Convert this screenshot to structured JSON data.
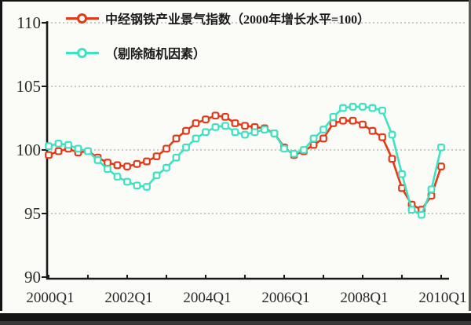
{
  "colors": {
    "series_index": "#e23a18",
    "series_smoothed": "#3fe2c0",
    "axis": "#1a1a1a",
    "gridline": "#ababab",
    "text": "#2a2a2a",
    "background": "#fbfbf8",
    "frame": "#141414"
  },
  "chart_data": {
    "type": "line",
    "title": "",
    "xlabel": "",
    "ylabel": "",
    "ylim": [
      90,
      110
    ],
    "yticks": [
      90,
      95,
      100,
      105,
      110
    ],
    "grid": "dotted-horizontal at 95/100/105/110",
    "legend_position": "top-left inside plot",
    "x_tick_labels": [
      "2000Q1",
      "2002Q1",
      "2004Q1",
      "2006Q1",
      "2008Q1",
      "2010Q1"
    ],
    "x_tick_indices": [
      0,
      8,
      16,
      24,
      32,
      40
    ],
    "categories": [
      "2000Q1",
      "2000Q2",
      "2000Q3",
      "2000Q4",
      "2001Q1",
      "2001Q2",
      "2001Q3",
      "2001Q4",
      "2002Q1",
      "2002Q2",
      "2002Q3",
      "2002Q4",
      "2003Q1",
      "2003Q2",
      "2003Q3",
      "2003Q4",
      "2004Q1",
      "2004Q2",
      "2004Q3",
      "2004Q4",
      "2005Q1",
      "2005Q2",
      "2005Q3",
      "2005Q4",
      "2006Q1",
      "2006Q2",
      "2006Q3",
      "2006Q4",
      "2007Q1",
      "2007Q2",
      "2007Q3",
      "2007Q4",
      "2008Q1",
      "2008Q2",
      "2008Q3",
      "2008Q4",
      "2009Q1",
      "2009Q2",
      "2009Q3",
      "2009Q4",
      "2010Q1"
    ],
    "series": [
      {
        "name": "中经钢铁产业景气指数（2000年增长水平=100）",
        "color": "#e23a18",
        "marker": "open-square",
        "values": [
          99.6,
          99.9,
          100.1,
          99.8,
          99.9,
          99.4,
          99.0,
          98.8,
          98.7,
          98.9,
          99.1,
          99.5,
          100.1,
          100.9,
          101.5,
          102.1,
          102.4,
          102.7,
          102.6,
          102.1,
          101.9,
          101.8,
          101.7,
          101.3,
          100.2,
          99.6,
          99.9,
          100.4,
          100.9,
          102.1,
          102.3,
          102.3,
          102.0,
          101.5,
          101.0,
          99.3,
          97.0,
          95.7,
          95.3,
          96.4,
          98.7
        ]
      },
      {
        "name": "（剔除随机因素）",
        "color": "#3fe2c0",
        "marker": "open-square",
        "values": [
          100.3,
          100.5,
          100.4,
          100.1,
          99.9,
          99.2,
          98.5,
          97.9,
          97.5,
          97.2,
          97.1,
          98.0,
          98.6,
          99.4,
          100.2,
          100.9,
          101.4,
          101.8,
          101.9,
          101.4,
          101.2,
          101.4,
          101.6,
          101.3,
          100.1,
          99.7,
          100.0,
          100.9,
          101.6,
          102.6,
          103.3,
          103.4,
          103.4,
          103.3,
          103.1,
          101.2,
          98.1,
          95.3,
          94.9,
          96.9,
          100.2
        ]
      }
    ]
  }
}
